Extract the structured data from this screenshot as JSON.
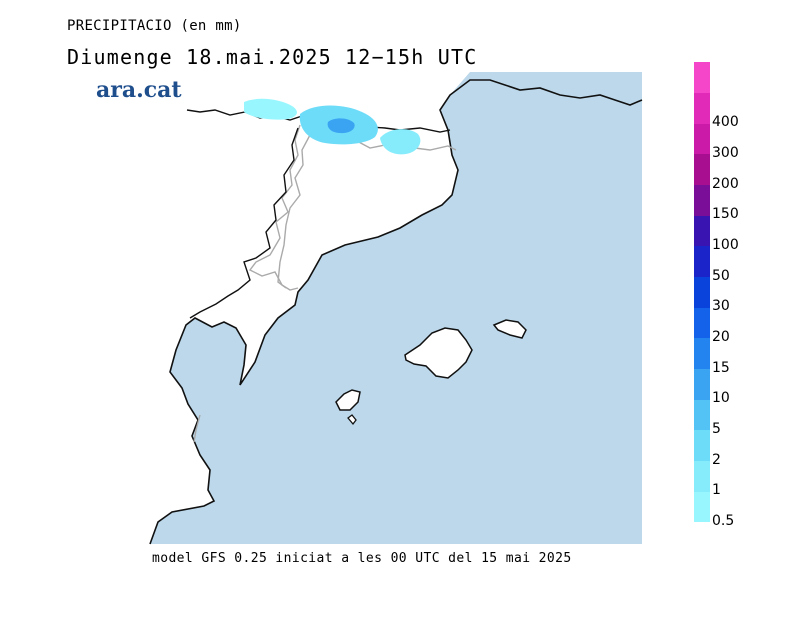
{
  "header": {
    "variable": "PRECIPITACIO (en mm)",
    "valid_time": "Diumenge  18.mai.2025  12−15h  UTC"
  },
  "brand": {
    "logo_text": "ara.cat"
  },
  "footer": {
    "model_info": "model GFS 0.25 iniciat a les 00 UTC del 15 mai 2025"
  },
  "map": {
    "region": "Catalunya, País Valencià i Illes Balears",
    "sea_color": "#bcd8ea",
    "land_color": "#ffffff",
    "coast_color": "#111111",
    "border_color": "#aaaaaa",
    "precip_areas": [
      {
        "name": "pirineu-occidental",
        "level_mm": 0.5
      },
      {
        "name": "pirineu-central",
        "level_mm": 2
      },
      {
        "name": "pirineu-central-nucli",
        "level_mm": 10
      },
      {
        "name": "pirineu-oriental",
        "level_mm": 1
      }
    ]
  },
  "legend": {
    "levels": [
      {
        "label": "0.5",
        "color": "#98f6ff"
      },
      {
        "label": "1",
        "color": "#86ecfb"
      },
      {
        "label": "2",
        "color": "#6ddcf8"
      },
      {
        "label": "5",
        "color": "#53c3f5"
      },
      {
        "label": "10",
        "color": "#3aa4f3"
      },
      {
        "label": "15",
        "color": "#2384f0"
      },
      {
        "label": "20",
        "color": "#1462ea"
      },
      {
        "label": "30",
        "color": "#0a43dc"
      },
      {
        "label": "50",
        "color": "#1a24c8"
      },
      {
        "label": "100",
        "color": "#3a14b0"
      },
      {
        "label": "150",
        "color": "#7a0e98"
      },
      {
        "label": "200",
        "color": "#a80e90"
      },
      {
        "label": "300",
        "color": "#cc1aa8"
      },
      {
        "label": "400",
        "color": "#e22ab9"
      },
      {
        "label": "",
        "color": "#f546c9"
      }
    ]
  }
}
